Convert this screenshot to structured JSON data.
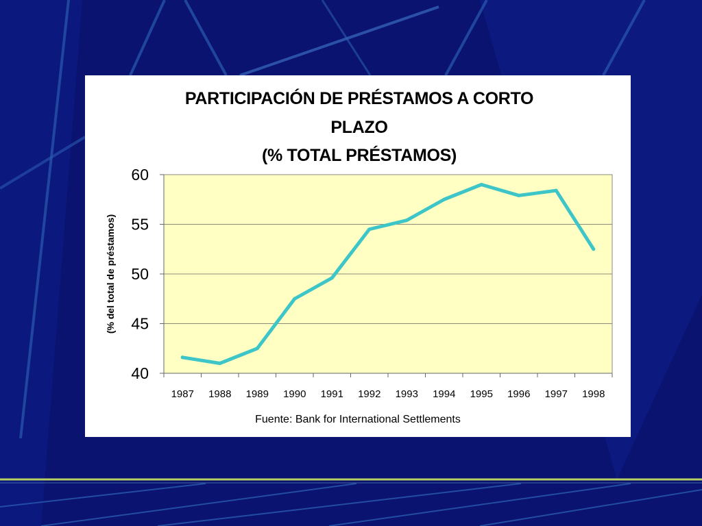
{
  "chart_data": {
    "type": "line",
    "title": [
      "PARTICIPACIÓN DE PRÉSTAMOS A CORTO",
      "PLAZO",
      "(% TOTAL PRÉSTAMOS)"
    ],
    "ylabel": "(% del total de préstamos)",
    "xlabel": "",
    "source": "Fuente: Bank for International Settlements",
    "categories": [
      "1987",
      "1988",
      "1989",
      "1990",
      "1991",
      "1992",
      "1993",
      "1994",
      "1995",
      "1996",
      "1997",
      "1998"
    ],
    "series": [
      {
        "values": [
          41.6,
          41.0,
          42.5,
          47.5,
          49.6,
          54.5,
          55.4,
          57.5,
          59.0,
          57.9,
          58.4,
          52.5
        ]
      }
    ],
    "ylim": [
      40,
      60
    ],
    "yticks": [
      40,
      45,
      50,
      55,
      60
    ],
    "grid": true,
    "colors": {
      "line": "#3ec5c8",
      "plot_bg": "#ffffc4",
      "grid": "#888888"
    }
  }
}
